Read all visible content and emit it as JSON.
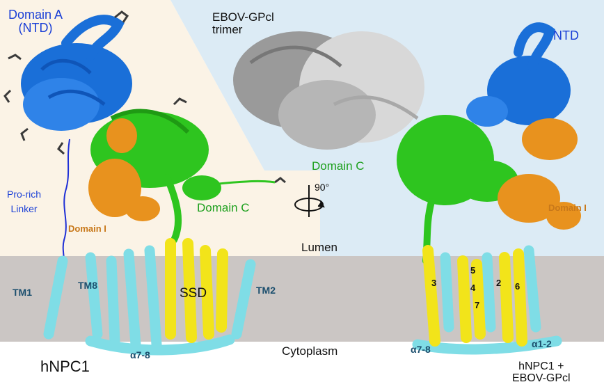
{
  "labels": {
    "domain_a": "Domain A",
    "ntd_paren": "(NTD)",
    "ebov_line1": "EBOV-GPcl",
    "ebov_line2": "trimer",
    "ntd_right": "NTD",
    "pro_rich_1": "Pro-rich",
    "pro_rich_2": "Linker",
    "domain_c_left": "Domain C",
    "domain_c_right": "Domain C",
    "domain_i_left": "Domain I",
    "domain_i_right": "Domain I",
    "rotation": "90°",
    "lumen": "Lumen",
    "tm1": "TM1",
    "tm8": "TM8",
    "ssd": "SSD",
    "tm2": "TM2",
    "cytoplasm": "Cytoplasm",
    "alpha78_left": "α7-8",
    "alpha78_right": "α7-8",
    "alpha12": "α1-2",
    "hnpc1": "hNPC1",
    "complex_line1": "hNPC1 +",
    "complex_line2": "EBOV-GPcl",
    "helix_numbers": [
      "5",
      "2",
      "3",
      "4",
      "6",
      "7"
    ]
  },
  "colors": {
    "domain_a": "#1a6fd8",
    "domain_c": "#2ec51f",
    "domain_i": "#e8921e",
    "ssd": "#f2e41a",
    "transmembrane": "#7fdde6",
    "ebov": "#9a9a9a",
    "membrane_band": "#cbc6c4",
    "lumen_left": "#fbf3e6",
    "lumen_right": "#dcebf5"
  }
}
